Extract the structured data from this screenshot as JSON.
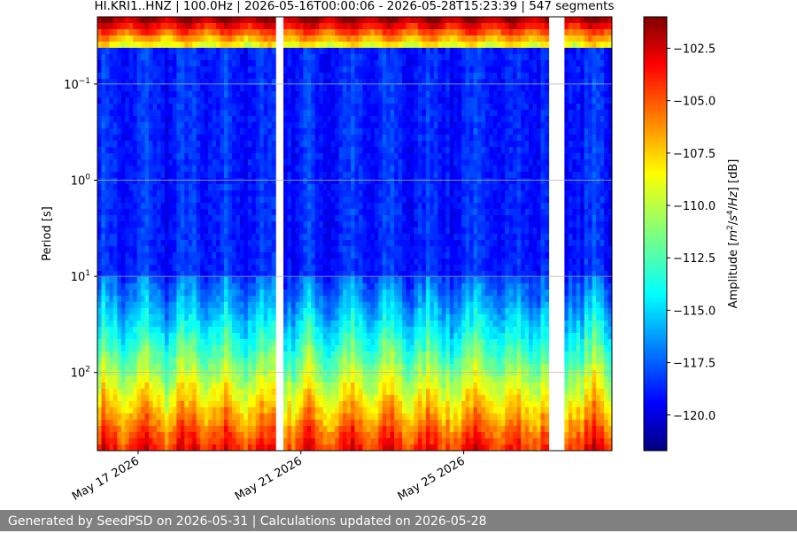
{
  "chart_data": {
    "type": "heatmap",
    "title": "HI.KRI1..HNZ | 100.0Hz | 2026-05-16T00:00:06 - 2026-05-28T15:23:39 | 547 segments",
    "ylabel": "Period [s]",
    "xlabel": "",
    "y_scale": "log",
    "y_inverted": true,
    "ylim": [
      0.02,
      650
    ],
    "y_ticks": [
      {
        "value": 0.1,
        "label": "10^{-1}",
        "base": "10",
        "exp": "−1"
      },
      {
        "value": 1,
        "label": "10^{0}",
        "base": "10",
        "exp": "0"
      },
      {
        "value": 10,
        "label": "10^{1}",
        "base": "10",
        "exp": "1"
      },
      {
        "value": 100,
        "label": "10^{2}",
        "base": "10",
        "exp": "2"
      }
    ],
    "x_start": "2026-05-16T00:00:06",
    "x_end": "2026-05-28T15:23:39",
    "x_ticks": [
      {
        "date": "2026-05-17",
        "label": "May 17 2026"
      },
      {
        "date": "2026-05-21",
        "label": "May 21 2026"
      },
      {
        "date": "2026-05-25",
        "label": "May 25 2026"
      }
    ],
    "data_gaps": [
      {
        "start": "2026-05-20T10:00:00",
        "end": "2026-05-20T14:40:00"
      },
      {
        "start": "2026-05-27T02:00:00",
        "end": "2026-05-27T11:00:00"
      }
    ],
    "colorbar": {
      "label": "Amplitude [m²/s⁴/Hz] [dB]",
      "label_parts": [
        "Amplitude [",
        "m",
        "2",
        "/",
        "s",
        "4",
        "/",
        "Hz",
        "] [dB]"
      ],
      "range": [
        -121.7,
        -101.0
      ],
      "ticks": [
        -102.5,
        -105.0,
        -107.5,
        -110.0,
        -112.5,
        -115.0,
        -117.5,
        -120.0
      ],
      "tick_labels": [
        "−102.5",
        "−105.0",
        "−107.5",
        "−110.0",
        "−112.5",
        "−115.0",
        "−117.5",
        "−120.0"
      ],
      "colormap": "jet"
    },
    "grid": true,
    "segments": 547,
    "sampling_rate_hz": 100.0,
    "channel": "HI.KRI1..HNZ"
  },
  "footer": {
    "text": "Generated by SeedPSD on 2026-05-31 | Calculations updated on 2026-05-28"
  }
}
